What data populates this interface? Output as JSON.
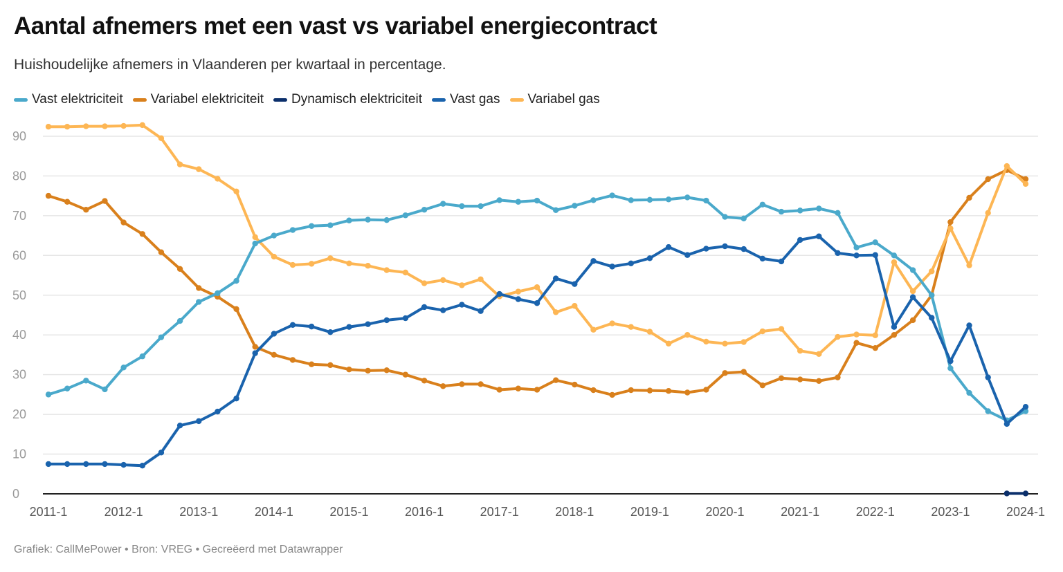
{
  "chart_data": {
    "type": "line",
    "title": "Aantal afnemers met een vast vs variabel energiecontract",
    "subtitle": "Huishoudelijke afnemers in Vlaanderen per kwartaal in percentage.",
    "xlabel": "",
    "ylabel": "",
    "ylim": [
      0,
      92
    ],
    "yticks": [
      0,
      10,
      20,
      30,
      40,
      50,
      60,
      70,
      80,
      90
    ],
    "xtick_labels": [
      "2011-1",
      "2012-1",
      "2013-1",
      "2014-1",
      "2015-1",
      "2016-1",
      "2017-1",
      "2018-1",
      "2019-1",
      "2020-1",
      "2021-1",
      "2022-1",
      "2023-1",
      "2024-1"
    ],
    "grid": true,
    "legend_position": "top-left",
    "x": [
      "2011-1",
      "2011-2",
      "2011-3",
      "2011-4",
      "2012-1",
      "2012-2",
      "2012-3",
      "2012-4",
      "2013-1",
      "2013-2",
      "2013-3",
      "2013-4",
      "2014-1",
      "2014-2",
      "2014-3",
      "2014-4",
      "2015-1",
      "2015-2",
      "2015-3",
      "2015-4",
      "2016-1",
      "2016-2",
      "2016-3",
      "2016-4",
      "2017-1",
      "2017-2",
      "2017-3",
      "2017-4",
      "2018-1",
      "2018-2",
      "2018-3",
      "2018-4",
      "2019-1",
      "2019-2",
      "2019-3",
      "2019-4",
      "2020-1",
      "2020-2",
      "2020-3",
      "2020-4",
      "2021-1",
      "2021-2",
      "2021-3",
      "2021-4",
      "2022-1",
      "2022-2",
      "2022-3",
      "2022-4",
      "2023-1",
      "2023-2",
      "2023-3",
      "2023-4",
      "2024-1"
    ],
    "series": [
      {
        "name": "Vast elektriciteit",
        "color": "#4aa9cb",
        "values": [
          25.0,
          26.5,
          28.5,
          26.3,
          31.8,
          34.6,
          39.4,
          43.5,
          48.3,
          50.5,
          53.6,
          63.0,
          65.0,
          66.4,
          67.4,
          67.6,
          68.8,
          69.0,
          68.9,
          70.1,
          71.5,
          73.0,
          72.4,
          72.4,
          73.9,
          73.5,
          73.8,
          71.4,
          72.5,
          73.9,
          75.1,
          73.9,
          74.0,
          74.1,
          74.6,
          73.8,
          69.7,
          69.3,
          72.8,
          71.0,
          71.3,
          71.8,
          70.7,
          62.0,
          63.3,
          60.0,
          56.3,
          50.0,
          31.6,
          25.4,
          20.8,
          18.5,
          20.8
        ]
      },
      {
        "name": "Variabel elektriciteit",
        "color": "#d9801c",
        "values": [
          75.0,
          73.5,
          71.5,
          73.7,
          68.3,
          65.4,
          60.8,
          56.6,
          51.8,
          49.6,
          46.5,
          37.0,
          35.0,
          33.7,
          32.6,
          32.4,
          31.3,
          31.0,
          31.1,
          30.0,
          28.5,
          27.1,
          27.6,
          27.6,
          26.2,
          26.5,
          26.2,
          28.6,
          27.5,
          26.1,
          24.9,
          26.1,
          26.0,
          25.9,
          25.5,
          26.2,
          30.4,
          30.7,
          27.3,
          29.1,
          28.8,
          28.4,
          29.3,
          38.0,
          36.7,
          40.0,
          43.7,
          50.0,
          68.4,
          74.5,
          79.2,
          81.5,
          79.2
        ]
      },
      {
        "name": "Dynamisch elektriciteit",
        "color": "#0b2f6b",
        "values": [
          null,
          null,
          null,
          null,
          null,
          null,
          null,
          null,
          null,
          null,
          null,
          null,
          null,
          null,
          null,
          null,
          null,
          null,
          null,
          null,
          null,
          null,
          null,
          null,
          null,
          null,
          null,
          null,
          null,
          null,
          null,
          null,
          null,
          null,
          null,
          null,
          null,
          null,
          null,
          null,
          null,
          null,
          null,
          null,
          null,
          null,
          null,
          null,
          null,
          null,
          null,
          0.1,
          0.1
        ]
      },
      {
        "name": "Vast gas",
        "color": "#1a63ad",
        "values": [
          7.5,
          7.5,
          7.5,
          7.5,
          7.3,
          7.1,
          10.4,
          17.2,
          18.3,
          20.7,
          24.0,
          35.4,
          40.3,
          42.5,
          42.1,
          40.7,
          42.0,
          42.7,
          43.7,
          44.2,
          47.0,
          46.2,
          47.6,
          46.0,
          50.3,
          49.0,
          48.0,
          54.2,
          52.8,
          58.6,
          57.2,
          58.0,
          59.3,
          62.1,
          60.1,
          61.7,
          62.3,
          61.6,
          59.2,
          58.5,
          63.9,
          64.8,
          60.6,
          60.0,
          60.1,
          42.0,
          49.5,
          44.3,
          33.4,
          42.4,
          29.3,
          17.6,
          21.9
        ]
      },
      {
        "name": "Variabel gas",
        "color": "#fdb654",
        "values": [
          92.4,
          92.4,
          92.5,
          92.5,
          92.6,
          92.8,
          89.5,
          82.9,
          81.7,
          79.3,
          76.1,
          64.6,
          59.7,
          57.6,
          57.9,
          59.3,
          58.0,
          57.4,
          56.3,
          55.7,
          53.0,
          53.8,
          52.5,
          54.0,
          49.7,
          50.9,
          52.0,
          45.7,
          47.3,
          41.3,
          42.9,
          42.0,
          40.8,
          37.8,
          40.0,
          38.3,
          37.8,
          38.2,
          40.9,
          41.5,
          36.0,
          35.2,
          39.5,
          40.1,
          39.9,
          58.3,
          51.0,
          56.0,
          66.8,
          57.5,
          70.7,
          82.5,
          78.0
        ]
      }
    ],
    "draw_order": [
      1,
      4,
      0,
      3,
      2
    ]
  },
  "footer": {
    "text": "Grafiek: CallMePower • Bron: VREG • Gecreëerd met Datawrapper"
  }
}
